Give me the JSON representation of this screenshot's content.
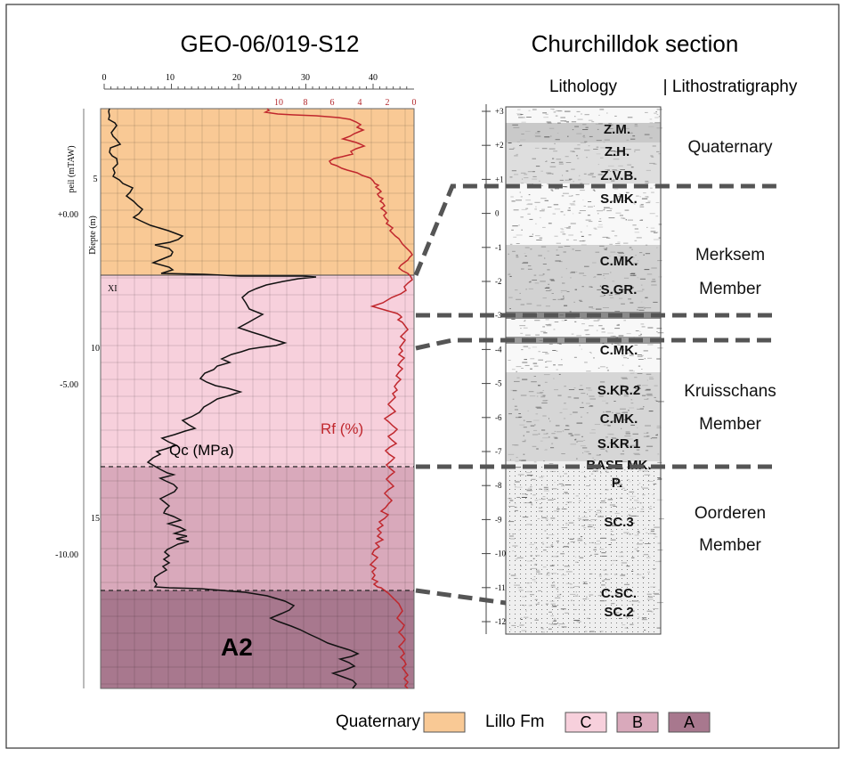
{
  "left_title": "GEO-06/019-S12",
  "right_title": "Churchilldok section",
  "col_lithology": "Lithology",
  "col_lithostrat": "| Lithostratigraphy",
  "qc_axis_ticks": [
    "0",
    "10",
    "20",
    "30",
    "40"
  ],
  "rf_axis_ticks": [
    "10",
    "8",
    "6",
    "4",
    "2",
    "0"
  ],
  "depth_ticks": [
    "5",
    "10",
    "15"
  ],
  "peil_ticks": [
    "+0.00",
    "-5.00",
    "-10.00"
  ],
  "ylabel_depth": "Diepte (m)",
  "ylabel_peil": "peil (mTAW)",
  "marker_label": "XI",
  "qc_label": "Qc (MPa)",
  "rf_label": "Rf (%)",
  "unit_label": "A2",
  "scale_ticks": [
    "+3",
    "+2",
    "+1",
    "0",
    "-1",
    "-2",
    "-3",
    "-4",
    "-5",
    "-6",
    "-7",
    "-8",
    "-9",
    "-10",
    "-11",
    "-12"
  ],
  "litho_labels": [
    "Z.M.",
    "Z.H.",
    "Z.V.B.",
    "S.MK.",
    "C.MK.",
    "S.GR.",
    "C.MK.",
    "S.KR.2",
    "C.MK.",
    "S.KR.1",
    "BASE MK.",
    "P.",
    "SC.3",
    "C.SC.",
    "SC.2"
  ],
  "strat_units": [
    "Quaternary",
    "Merksem",
    "Member",
    "Kruisschans",
    "Member",
    "Oorderen",
    "Member"
  ],
  "legend": {
    "quaternary_label": "Quaternary",
    "lillo_label": "Lillo Fm",
    "c": "C",
    "b": "B",
    "a": "A"
  },
  "colors": {
    "quaternary": "#f9c995",
    "lillo_c": "#f7d0dc",
    "lillo_b": "#d9a9bb",
    "lillo_a": "#a8788e",
    "qc_curve": "#111111",
    "rf_curve": "#c0272d",
    "correlation": "#555555"
  }
}
